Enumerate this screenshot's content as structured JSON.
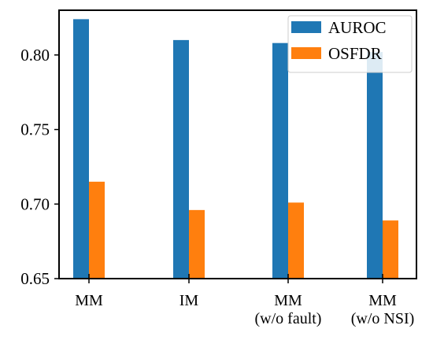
{
  "chart_data": {
    "type": "bar",
    "categories": [
      [
        "MM"
      ],
      [
        "IM"
      ],
      [
        "MM",
        "(w/o fault)"
      ],
      [
        "MM",
        "(w/o NSI)"
      ]
    ],
    "series": [
      {
        "name": "AUROC",
        "color": "#1f77b4",
        "values": [
          0.824,
          0.81,
          0.808,
          0.802
        ]
      },
      {
        "name": "OSFDR",
        "color": "#ff7f0e",
        "values": [
          0.715,
          0.696,
          0.701,
          0.689
        ]
      }
    ],
    "ylim": [
      0.65,
      0.83
    ],
    "yticks": [
      0.65,
      0.7,
      0.75,
      0.8
    ],
    "ytick_labels": [
      "0.65",
      "0.70",
      "0.75",
      "0.80"
    ],
    "legend_position": "top-right",
    "grid": false,
    "title": "",
    "xlabel": "",
    "ylabel": ""
  }
}
